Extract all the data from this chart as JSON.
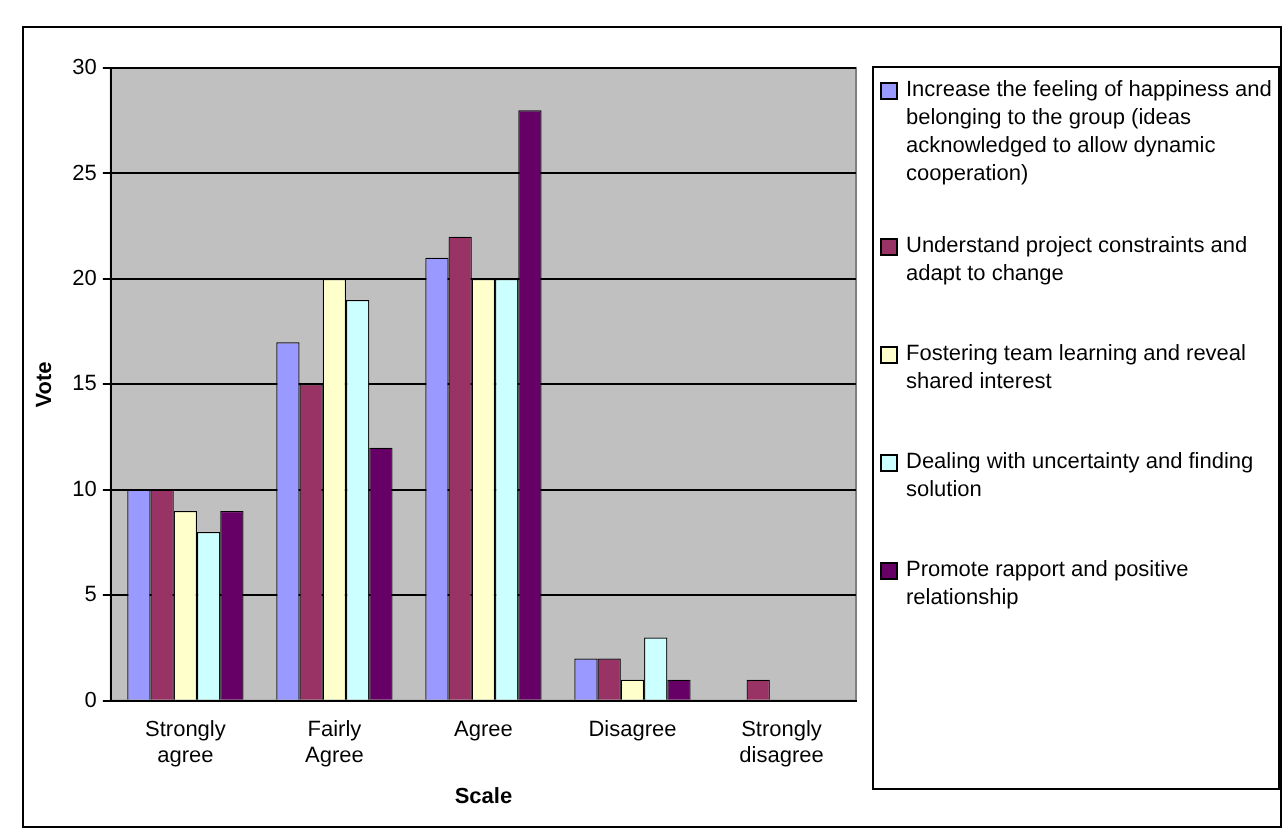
{
  "chart_data": {
    "type": "bar",
    "xlabel": "Scale",
    "ylabel": "Vote",
    "categories": [
      "Strongly agree",
      "Fairly Agree",
      "Agree",
      "Disagree",
      "Strongly disagree"
    ],
    "series": [
      {
        "name": "Increase the feeling of happiness and belonging to the group (ideas acknowledged to allow dynamic cooperation)",
        "color": "#9999ff",
        "values": [
          10,
          17,
          21,
          2,
          0
        ]
      },
      {
        "name": "Understand project constraints and adapt to change",
        "color": "#993366",
        "values": [
          10,
          15,
          22,
          2,
          1
        ]
      },
      {
        "name": "Fostering team learning and reveal shared interest",
        "color": "#ffffcc",
        "values": [
          9,
          20,
          20,
          1,
          0
        ]
      },
      {
        "name": "Dealing with uncertainty and finding solution",
        "color": "#ccffff",
        "values": [
          8,
          19,
          20,
          3,
          0
        ]
      },
      {
        "name": "Promote rapport and positive relationship",
        "color": "#660066",
        "values": [
          9,
          12,
          28,
          1,
          0
        ]
      }
    ],
    "ylim": [
      0,
      30
    ],
    "yticks": [
      0,
      5,
      10,
      15,
      20,
      25,
      30
    ],
    "grid": "y",
    "legend": "right"
  }
}
